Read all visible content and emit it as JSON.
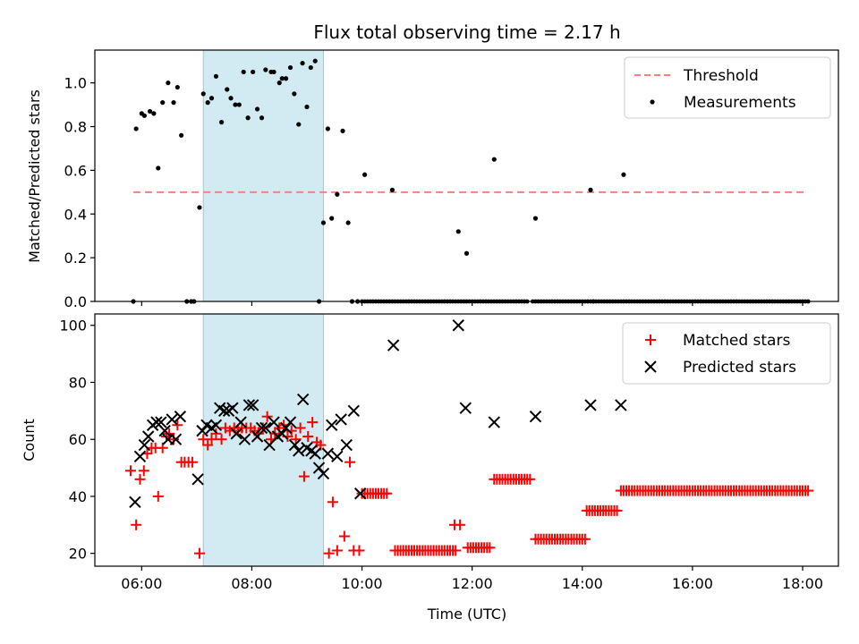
{
  "title": "Flux total observing time = 2.17 h",
  "xlabel": "Time (UTC)",
  "xticks": [
    {
      "hour": 6,
      "label": "06:00"
    },
    {
      "hour": 8,
      "label": "08:00"
    },
    {
      "hour": 10,
      "label": "10:00"
    },
    {
      "hour": 12,
      "label": "12:00"
    },
    {
      "hour": 14,
      "label": "14:00"
    },
    {
      "hour": 16,
      "label": "16:00"
    },
    {
      "hour": 18,
      "label": "18:00"
    }
  ],
  "colors": {
    "threshold": "#ff7f7f",
    "measurements": "#000000",
    "matched": "#ff0000",
    "predicted": "#000000",
    "shade": "#add8e6"
  },
  "chart_data": [
    {
      "type": "scatter",
      "panel": "top",
      "ylabel": "Matched/Predicted stars",
      "xlim": [
        5.15,
        18.65
      ],
      "ylim": [
        0,
        1.15
      ],
      "yticks": [
        "0.0",
        "0.2",
        "0.4",
        "0.6",
        "0.8",
        "1.0"
      ],
      "shaded_interval": [
        7.12,
        9.3
      ],
      "legend": {
        "location": "top-right",
        "entries": [
          "Threshold",
          "Measurements"
        ]
      },
      "threshold": {
        "name": "Threshold",
        "style": "dashed",
        "x": [
          5.85,
          18.1
        ],
        "y": 0.5
      },
      "series": [
        {
          "name": "Measurements",
          "marker": "dot",
          "x": [
            5.85,
            5.9,
            6.0,
            6.05,
            6.15,
            6.22,
            6.3,
            6.38,
            6.48,
            6.58,
            6.65,
            6.72,
            6.82,
            6.9,
            6.95,
            7.05,
            7.12,
            7.2,
            7.27,
            7.35,
            7.45,
            7.55,
            7.62,
            7.7,
            7.77,
            7.85,
            7.93,
            8.02,
            8.1,
            8.18,
            8.25,
            8.35,
            8.4,
            8.5,
            8.55,
            8.62,
            8.7,
            8.77,
            8.85,
            8.92,
            9.0,
            9.07,
            9.15,
            9.22,
            9.3,
            9.38,
            9.45,
            9.55,
            9.65,
            9.75,
            9.82,
            9.92,
            10.05,
            10.55,
            11.75,
            11.9,
            12.4,
            13.15,
            14.15,
            14.75
          ],
          "y": [
            0.0,
            0.79,
            0.86,
            0.85,
            0.87,
            0.86,
            0.61,
            0.91,
            1.0,
            0.91,
            0.98,
            0.76,
            0.0,
            0.0,
            0.0,
            0.43,
            0.95,
            0.91,
            0.93,
            1.03,
            0.82,
            0.97,
            0.93,
            0.9,
            0.9,
            1.05,
            0.84,
            1.05,
            0.88,
            0.84,
            1.06,
            1.05,
            1.05,
            1.0,
            1.02,
            1.02,
            1.07,
            0.95,
            0.81,
            1.09,
            0.89,
            1.07,
            1.1,
            0.0,
            0.36,
            0.79,
            0.38,
            0.49,
            0.78,
            0.36,
            0.0,
            0.0,
            0.58,
            0.51,
            0.32,
            0.22,
            0.65,
            0.38,
            0.51,
            0.58
          ],
          "zero_runs": [
            [
              10.0,
              13.0
            ],
            [
              13.1,
              14.2
            ],
            [
              14.2,
              18.1
            ]
          ]
        }
      ]
    },
    {
      "type": "scatter",
      "panel": "bottom",
      "ylabel": "Count",
      "xlim": [
        5.15,
        18.65
      ],
      "ylim": [
        15.5,
        104
      ],
      "yticks": [
        "20",
        "40",
        "60",
        "80",
        "100"
      ],
      "shaded_interval": [
        7.12,
        9.3
      ],
      "legend": {
        "location": "top-right",
        "entries": [
          "Matched stars",
          "Predicted stars"
        ]
      },
      "series": [
        {
          "name": "Matched stars",
          "marker": "plus",
          "x": [
            5.8,
            5.9,
            5.97,
            6.04,
            6.1,
            6.18,
            6.25,
            6.3,
            6.38,
            6.45,
            6.5,
            6.58,
            6.65,
            6.72,
            6.78,
            6.85,
            6.92,
            7.05,
            7.12,
            7.2,
            7.27,
            7.35,
            7.45,
            7.52,
            7.6,
            7.68,
            7.75,
            7.82,
            7.9,
            7.98,
            8.05,
            8.12,
            8.2,
            8.28,
            8.35,
            8.42,
            8.5,
            8.58,
            8.65,
            8.72,
            8.8,
            8.88,
            8.95,
            9.02,
            9.1,
            9.18,
            9.25,
            9.4,
            9.47,
            9.55,
            9.68,
            9.78,
            9.85,
            9.95,
            11.68,
            11.78
          ],
          "y": [
            49,
            30,
            46,
            49,
            55,
            57,
            57,
            40,
            57,
            61,
            62,
            60,
            65,
            52,
            52,
            52,
            52,
            20,
            60,
            58,
            60,
            62,
            60,
            64,
            63,
            64,
            63,
            64,
            64,
            64,
            63,
            62,
            64,
            68,
            60,
            62,
            64,
            65,
            61,
            63,
            60,
            64,
            47,
            61,
            66,
            59,
            58,
            20,
            38,
            21,
            26,
            52,
            21,
            21,
            30,
            30
          ],
          "runs": [
            {
              "x": [
                10.0,
                10.45
              ],
              "y": 41
            },
            {
              "x": [
                10.6,
                11.7
              ],
              "y": 21
            },
            {
              "x": [
                11.92,
                12.33
              ],
              "y": 22
            },
            {
              "x": [
                12.4,
                13.05
              ],
              "y": 46
            },
            {
              "x": [
                13.15,
                14.05
              ],
              "y": 25
            },
            {
              "x": [
                14.08,
                14.65
              ],
              "y": 35
            },
            {
              "x": [
                14.7,
                18.1
              ],
              "y": 42
            }
          ]
        },
        {
          "name": "Predicted stars",
          "marker": "x",
          "x": [
            5.88,
            5.97,
            6.05,
            6.12,
            6.2,
            6.27,
            6.35,
            6.42,
            6.48,
            6.55,
            6.62,
            6.7,
            7.02,
            7.1,
            7.18,
            7.27,
            7.35,
            7.42,
            7.5,
            7.58,
            7.65,
            7.72,
            7.8,
            7.87,
            7.95,
            8.02,
            8.1,
            8.18,
            8.25,
            8.32,
            8.4,
            8.47,
            8.55,
            8.62,
            8.7,
            8.78,
            8.85,
            8.93,
            9.0,
            9.08,
            9.15,
            9.22,
            9.3,
            9.38,
            9.45,
            9.55,
            9.62,
            9.72,
            9.85,
            9.97,
            10.57,
            11.75,
            11.88,
            12.4,
            13.15,
            14.15,
            14.7
          ],
          "y": [
            38,
            54,
            58,
            61,
            65,
            66,
            66,
            63,
            60,
            67,
            60,
            68,
            46,
            63,
            65,
            64,
            65,
            71,
            70,
            70,
            71,
            62,
            66,
            60,
            72,
            72,
            61,
            64,
            64,
            58,
            66,
            61,
            62,
            64,
            66,
            58,
            56,
            74,
            57,
            56,
            55,
            50,
            48,
            55,
            65,
            54,
            67,
            58,
            70,
            41,
            93,
            100,
            71,
            66,
            68,
            72,
            72
          ]
        }
      ]
    }
  ]
}
